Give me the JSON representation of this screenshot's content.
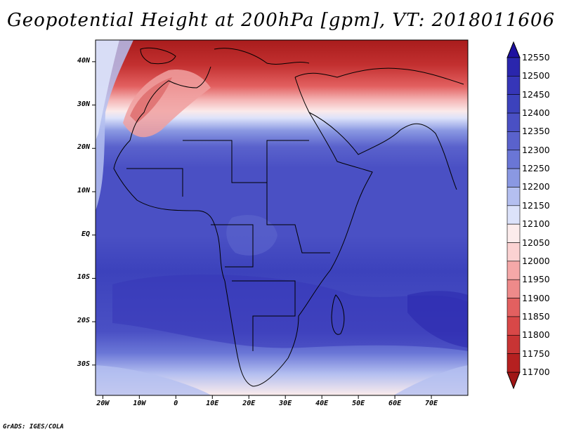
{
  "title": "Geopotential Height at 200hPa [gpm], VT: 2018011606",
  "credit": "GrADS: IGES/COLA",
  "map": {
    "lon_range": [
      -22,
      80
    ],
    "lat_range": [
      -37,
      45
    ],
    "lat_ticks": [
      {
        "lat": 40,
        "label": "40N"
      },
      {
        "lat": 30,
        "label": "30N"
      },
      {
        "lat": 20,
        "label": "20N"
      },
      {
        "lat": 10,
        "label": "10N"
      },
      {
        "lat": 0,
        "label": "EQ"
      },
      {
        "lat": -10,
        "label": "10S"
      },
      {
        "lat": -20,
        "label": "20S"
      },
      {
        "lat": -30,
        "label": "30S"
      }
    ],
    "lon_ticks": [
      {
        "lon": -20,
        "label": "20W"
      },
      {
        "lon": -10,
        "label": "10W"
      },
      {
        "lon": 0,
        "label": "0"
      },
      {
        "lon": 10,
        "label": "10E"
      },
      {
        "lon": 20,
        "label": "20E"
      },
      {
        "lon": 30,
        "label": "30E"
      },
      {
        "lon": 40,
        "label": "40E"
      },
      {
        "lon": 50,
        "label": "50E"
      },
      {
        "lon": 60,
        "label": "60E"
      },
      {
        "lon": 70,
        "label": "70E"
      }
    ]
  },
  "colorbar": {
    "levels": [
      "12550",
      "12500",
      "12450",
      "12400",
      "12350",
      "12300",
      "12250",
      "12200",
      "12150",
      "12100",
      "12050",
      "12000",
      "11950",
      "11900",
      "11850",
      "11800",
      "11750",
      "11700"
    ],
    "colors": [
      "#1e10a0",
      "#2a26ad",
      "#3636b8",
      "#3c42bc",
      "#4a50c4",
      "#5a62cc",
      "#6a76d6",
      "#8a98e2",
      "#b4bff0",
      "#dce2fa",
      "#fcecec",
      "#fbd2d2",
      "#f5a8a8",
      "#ee8a8a",
      "#e26060",
      "#d84848",
      "#c83434",
      "#b52020",
      "#a01616"
    ]
  }
}
